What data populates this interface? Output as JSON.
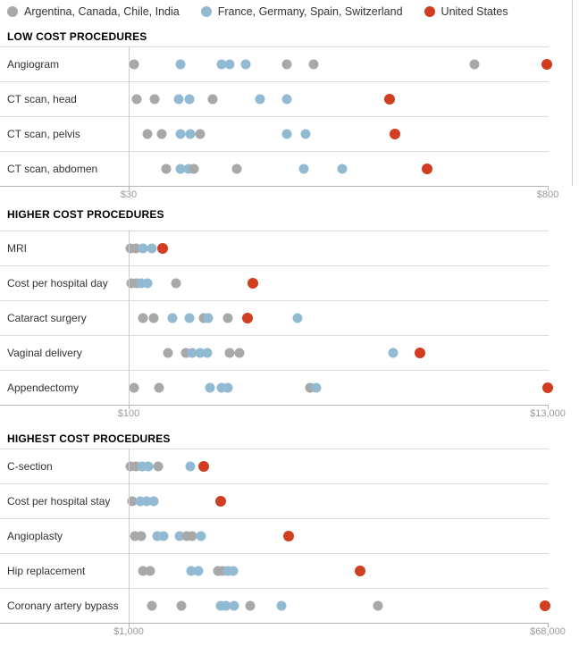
{
  "legend": {
    "items": [
      {
        "label": "Argentina, Canada, Chile, India",
        "group": "gray"
      },
      {
        "label": "France, Germany, Spain, Switzerland",
        "group": "blue"
      },
      {
        "label": "United States",
        "group": "red"
      }
    ]
  },
  "colors": {
    "gray": "#a8a8a8",
    "blue": "#92bad3",
    "red": "#d03d21"
  },
  "chart_data": [
    {
      "type": "scatter",
      "title": "LOW COST PROCEDURES",
      "axis_min": 30,
      "axis_max": 800,
      "axis_min_label": "$30",
      "axis_max_label": "$800",
      "legend_position": "top",
      "rows": [
        {
          "label": "Angiogram",
          "points": [
            {
              "value": 40,
              "group": "gray"
            },
            {
              "value": 125,
              "group": "blue"
            },
            {
              "value": 200,
              "group": "blue"
            },
            {
              "value": 215,
              "group": "blue"
            },
            {
              "value": 245,
              "group": "blue"
            },
            {
              "value": 320,
              "group": "gray"
            },
            {
              "value": 370,
              "group": "gray"
            },
            {
              "value": 665,
              "group": "gray"
            },
            {
              "value": 798,
              "group": "red"
            }
          ]
        },
        {
          "label": "CT scan, head",
          "points": [
            {
              "value": 45,
              "group": "gray"
            },
            {
              "value": 78,
              "group": "gray"
            },
            {
              "value": 122,
              "group": "blue"
            },
            {
              "value": 142,
              "group": "blue"
            },
            {
              "value": 185,
              "group": "gray"
            },
            {
              "value": 272,
              "group": "blue"
            },
            {
              "value": 320,
              "group": "blue"
            },
            {
              "value": 510,
              "group": "red"
            }
          ]
        },
        {
          "label": "CT scan, pelvis",
          "points": [
            {
              "value": 65,
              "group": "gray"
            },
            {
              "value": 90,
              "group": "gray"
            },
            {
              "value": 125,
              "group": "blue"
            },
            {
              "value": 143,
              "group": "blue"
            },
            {
              "value": 162,
              "group": "gray"
            },
            {
              "value": 320,
              "group": "blue"
            },
            {
              "value": 355,
              "group": "blue"
            },
            {
              "value": 520,
              "group": "red"
            }
          ]
        },
        {
          "label": "CT scan, abdomen",
          "points": [
            {
              "value": 99,
              "group": "gray"
            },
            {
              "value": 125,
              "group": "blue"
            },
            {
              "value": 140,
              "group": "blue"
            },
            {
              "value": 150,
              "group": "gray"
            },
            {
              "value": 229,
              "group": "gray"
            },
            {
              "value": 352,
              "group": "blue"
            },
            {
              "value": 423,
              "group": "blue"
            },
            {
              "value": 579,
              "group": "red"
            }
          ]
        }
      ]
    },
    {
      "type": "scatter",
      "title": "HIGHER COST PROCEDURES",
      "axis_min": 100,
      "axis_max": 13000,
      "axis_min_label": "$100",
      "axis_max_label": "$13,000",
      "rows": [
        {
          "label": "MRI",
          "points": [
            {
              "value": 150,
              "group": "gray"
            },
            {
              "value": 330,
              "group": "gray"
            },
            {
              "value": 540,
              "group": "blue"
            },
            {
              "value": 820,
              "group": "blue"
            },
            {
              "value": 1145,
              "group": "red"
            }
          ]
        },
        {
          "label": "Cost per hospital day",
          "points": [
            {
              "value": 190,
              "group": "gray"
            },
            {
              "value": 350,
              "group": "gray"
            },
            {
              "value": 490,
              "group": "blue"
            },
            {
              "value": 680,
              "group": "blue"
            },
            {
              "value": 1550,
              "group": "gray"
            },
            {
              "value": 3925,
              "group": "red"
            }
          ]
        },
        {
          "label": "Cataract surgery",
          "points": [
            {
              "value": 550,
              "group": "gray"
            },
            {
              "value": 870,
              "group": "gray"
            },
            {
              "value": 1440,
              "group": "blue"
            },
            {
              "value": 1975,
              "group": "blue"
            },
            {
              "value": 2400,
              "group": "gray"
            },
            {
              "value": 2550,
              "group": "blue"
            },
            {
              "value": 3150,
              "group": "gray"
            },
            {
              "value": 3750,
              "group": "red"
            },
            {
              "value": 5300,
              "group": "blue"
            }
          ]
        },
        {
          "label": "Vaginal delivery",
          "points": [
            {
              "value": 1310,
              "group": "gray"
            },
            {
              "value": 1860,
              "group": "gray"
            },
            {
              "value": 2050,
              "group": "blue"
            },
            {
              "value": 2300,
              "group": "blue"
            },
            {
              "value": 2520,
              "group": "blue"
            },
            {
              "value": 3200,
              "group": "gray"
            },
            {
              "value": 3510,
              "group": "gray"
            },
            {
              "value": 8250,
              "group": "blue"
            },
            {
              "value": 9075,
              "group": "red"
            }
          ]
        },
        {
          "label": "Appendectomy",
          "points": [
            {
              "value": 265,
              "group": "gray"
            },
            {
              "value": 1035,
              "group": "gray"
            },
            {
              "value": 2600,
              "group": "blue"
            },
            {
              "value": 2960,
              "group": "blue"
            },
            {
              "value": 3150,
              "group": "blue"
            },
            {
              "value": 5690,
              "group": "gray"
            },
            {
              "value": 5875,
              "group": "blue"
            },
            {
              "value": 13000,
              "group": "red"
            }
          ]
        }
      ]
    },
    {
      "type": "scatter",
      "title": "HIGHEST COST PROCEDURES",
      "axis_min": 1000,
      "axis_max": 68000,
      "axis_min_label": "$1,000",
      "axis_max_label": "$68,000",
      "rows": [
        {
          "label": "C-section",
          "points": [
            {
              "value": 1300,
              "group": "gray"
            },
            {
              "value": 2150,
              "group": "gray"
            },
            {
              "value": 3150,
              "group": "blue"
            },
            {
              "value": 4150,
              "group": "blue"
            },
            {
              "value": 5700,
              "group": "gray"
            },
            {
              "value": 10850,
              "group": "blue"
            },
            {
              "value": 13000,
              "group": "red"
            }
          ]
        },
        {
          "label": "Cost per hospital stay",
          "points": [
            {
              "value": 1600,
              "group": "gray"
            },
            {
              "value": 2850,
              "group": "blue"
            },
            {
              "value": 3850,
              "group": "blue"
            },
            {
              "value": 5000,
              "group": "blue"
            },
            {
              "value": 15700,
              "group": "red"
            }
          ]
        },
        {
          "label": "Angioplasty",
          "points": [
            {
              "value": 2000,
              "group": "gray"
            },
            {
              "value": 3000,
              "group": "gray"
            },
            {
              "value": 5600,
              "group": "blue"
            },
            {
              "value": 6600,
              "group": "blue"
            },
            {
              "value": 9150,
              "group": "blue"
            },
            {
              "value": 10300,
              "group": "gray"
            },
            {
              "value": 11150,
              "group": "gray"
            },
            {
              "value": 12600,
              "group": "blue"
            },
            {
              "value": 26600,
              "group": "red"
            }
          ]
        },
        {
          "label": "Hip replacement",
          "points": [
            {
              "value": 3300,
              "group": "gray"
            },
            {
              "value": 4450,
              "group": "gray"
            },
            {
              "value": 11000,
              "group": "blue"
            },
            {
              "value": 12150,
              "group": "blue"
            },
            {
              "value": 15300,
              "group": "gray"
            },
            {
              "value": 16000,
              "group": "gray"
            },
            {
              "value": 16850,
              "group": "blue"
            },
            {
              "value": 17750,
              "group": "blue"
            },
            {
              "value": 38000,
              "group": "red"
            }
          ]
        },
        {
          "label": "Coronary artery bypass",
          "points": [
            {
              "value": 4700,
              "group": "gray"
            },
            {
              "value": 9450,
              "group": "gray"
            },
            {
              "value": 15700,
              "group": "blue"
            },
            {
              "value": 16600,
              "group": "blue"
            },
            {
              "value": 17900,
              "group": "blue"
            },
            {
              "value": 20400,
              "group": "gray"
            },
            {
              "value": 25450,
              "group": "blue"
            },
            {
              "value": 40850,
              "group": "gray"
            },
            {
              "value": 67600,
              "group": "red"
            }
          ]
        }
      ]
    }
  ]
}
